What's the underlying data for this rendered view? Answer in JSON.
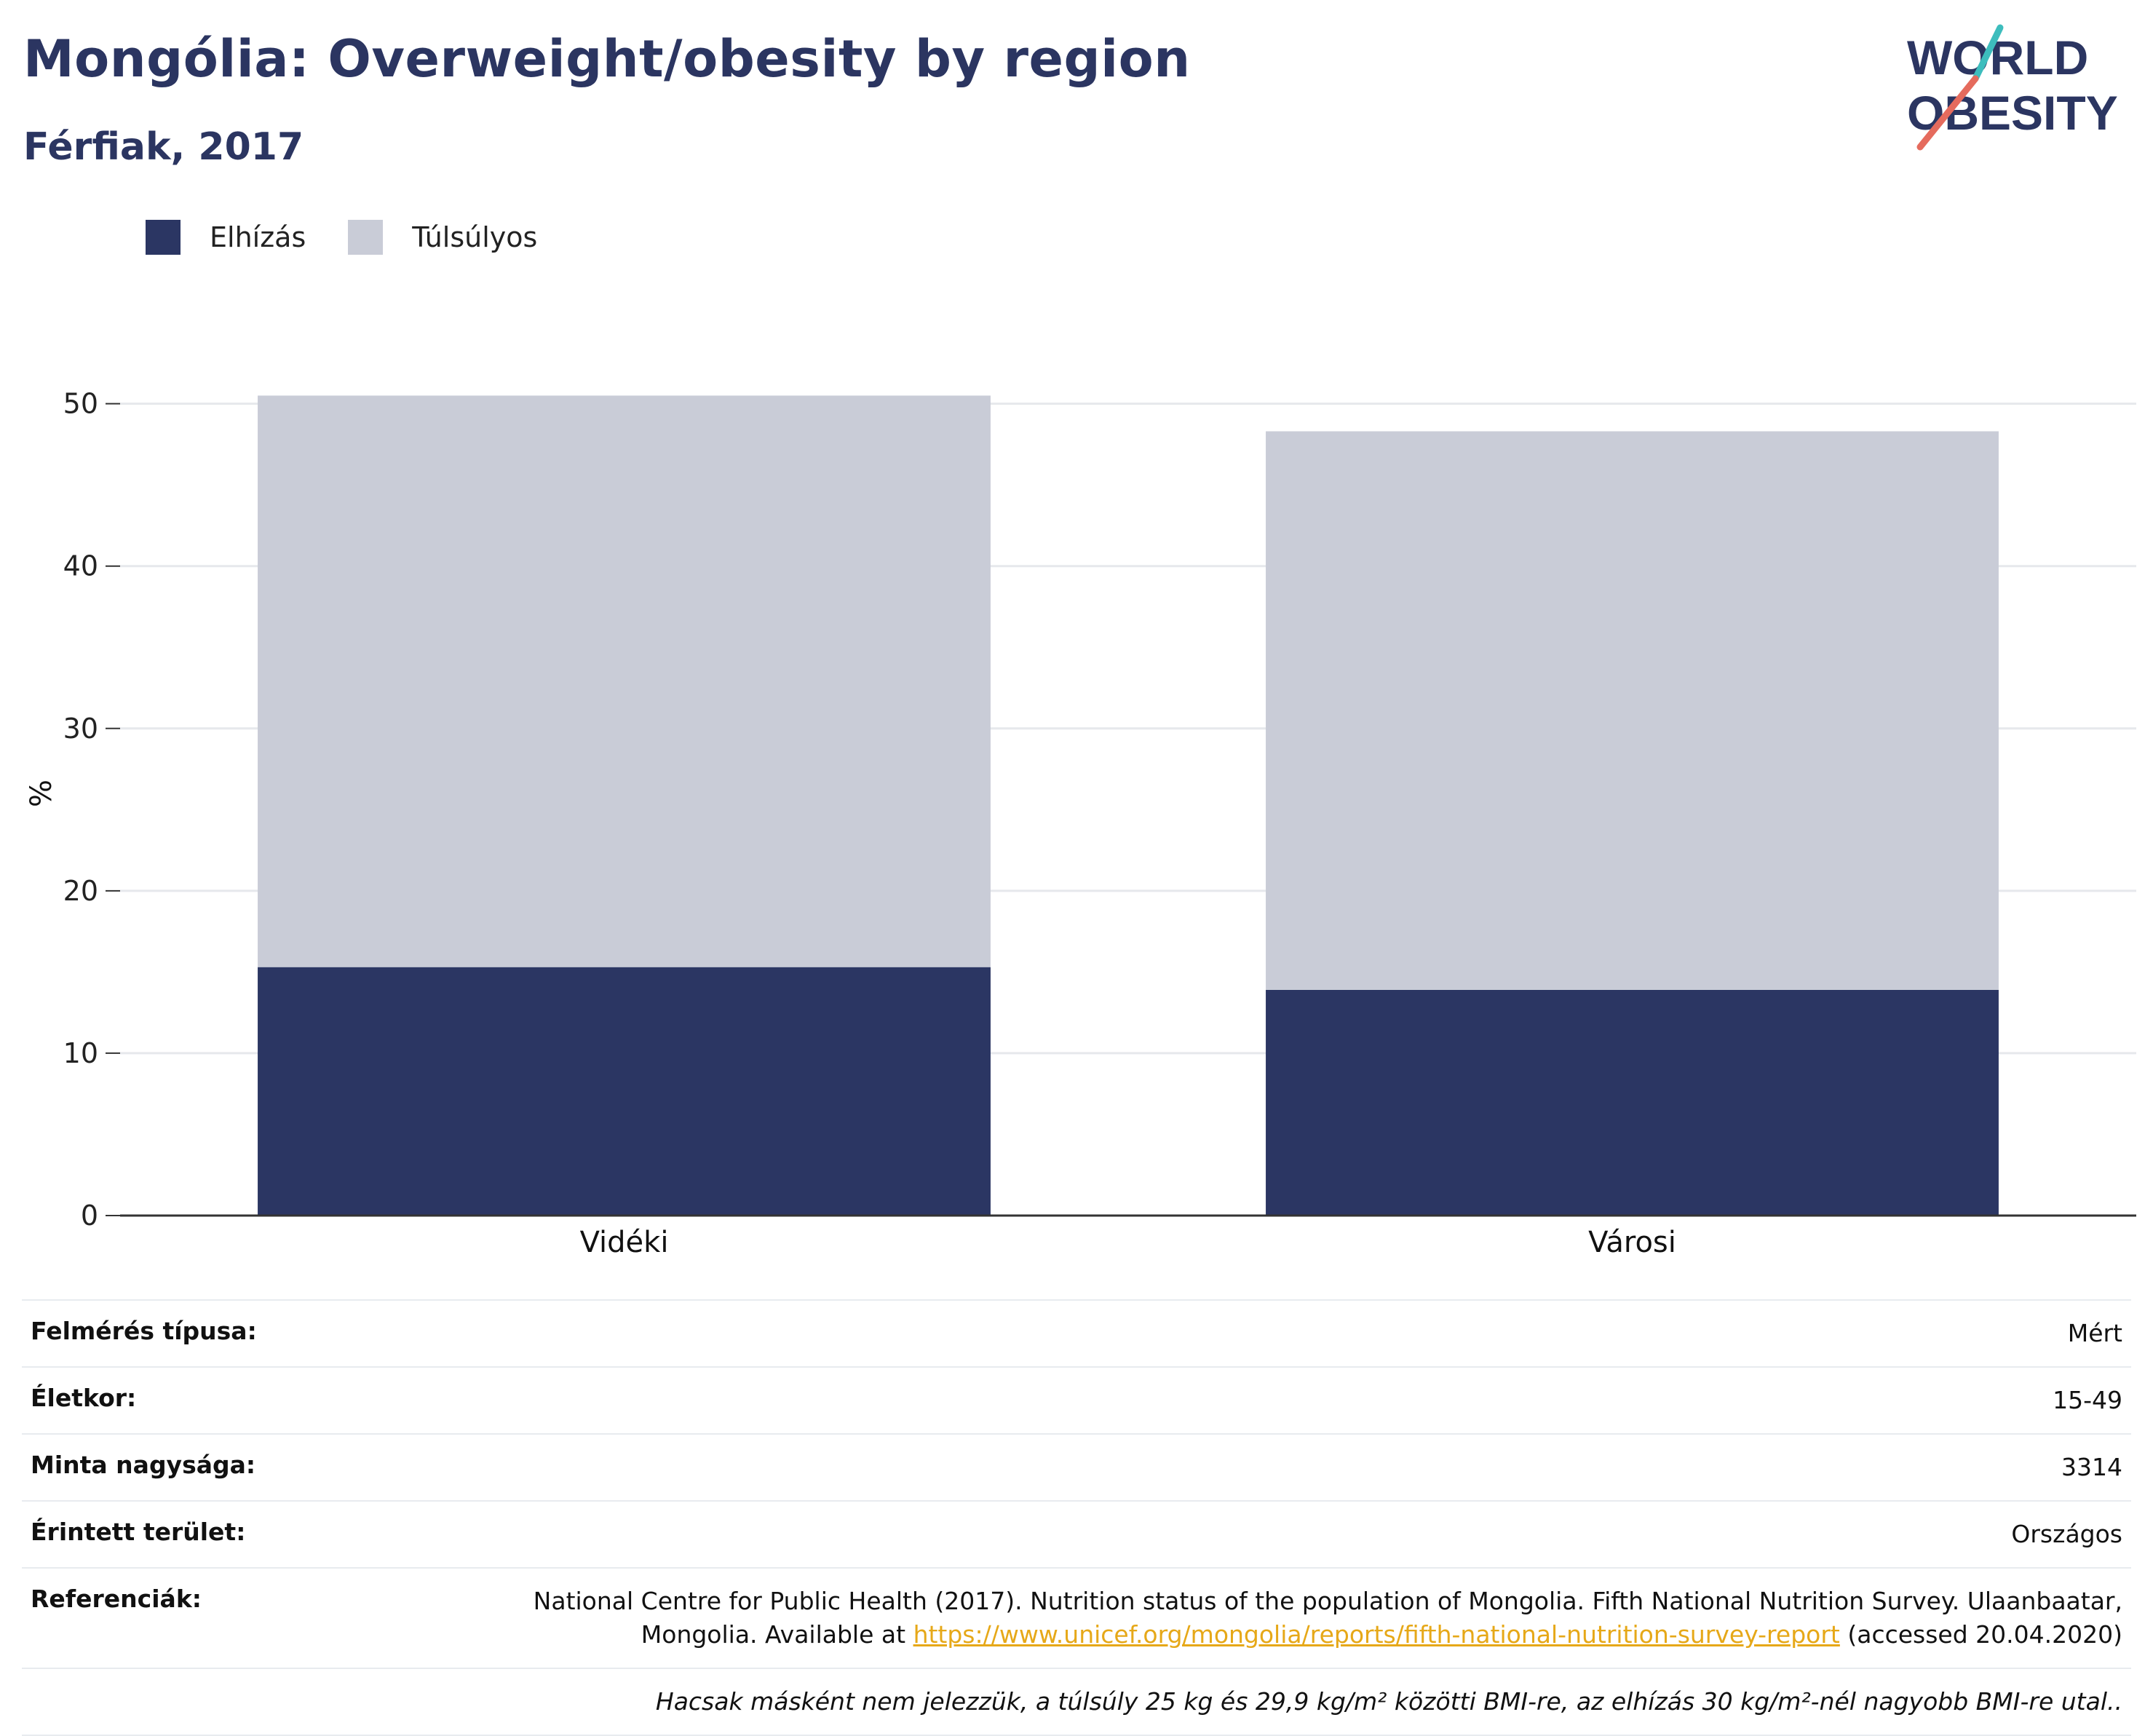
{
  "header": {
    "title": "Mongólia: Overweight/obesity by region",
    "subtitle": "Férfiak, 2017"
  },
  "logo": {
    "line1": "WORLD",
    "line2": "OBESITY"
  },
  "colors": {
    "obese": "#2b3663",
    "overweight": "#c9ccd7",
    "title": "#2b3561",
    "link": "#e6a818",
    "logo_teal": "#3dbdbd",
    "logo_coral": "#e56b5d"
  },
  "legend": {
    "obese_label": "Elhízás",
    "overweight_label": "Túlsúlyos"
  },
  "chart_data": {
    "type": "bar",
    "stacked": true,
    "categories": [
      "Vidéki",
      "Városi"
    ],
    "series": [
      {
        "name": "Elhízás",
        "values": [
          15.3,
          13.9
        ]
      },
      {
        "name": "Túlsúlyos",
        "values": [
          35.2,
          34.4
        ]
      }
    ],
    "ylabel": "%",
    "xlabel": "",
    "ylim": [
      0,
      52
    ],
    "yticks": [
      0,
      10,
      20,
      30,
      40,
      50
    ],
    "grid": true,
    "legend_position": "top-left"
  },
  "info": {
    "survey_type_label": "Felmérés típusa:",
    "survey_type_value": "Mért",
    "age_label": "Életkor:",
    "age_value": "15-49",
    "sample_label": "Minta nagysága:",
    "sample_value": "3314",
    "area_label": "Érintett terület:",
    "area_value": "Országos",
    "ref_label": "Referenciák:",
    "ref_text_line1": "National Centre for Public Health (2017). Nutrition status of the population of Mongolia. Fifth National Nutrition Survey. Ulaanbaatar,",
    "ref_text_before": "Mongolia. Available at",
    "ref_link": "https://www.unicef.org/mongolia/reports/fifth-national-nutrition-survey-report",
    "ref_text_after": "(accessed 20.04.2020)",
    "note": "Hacsak másként nem jelezzük, a túlsúly 25 kg és 29,9 kg/m² közötti BMI-re, az elhízás 30 kg/m²-nél nagyobb BMI-re utal.."
  }
}
